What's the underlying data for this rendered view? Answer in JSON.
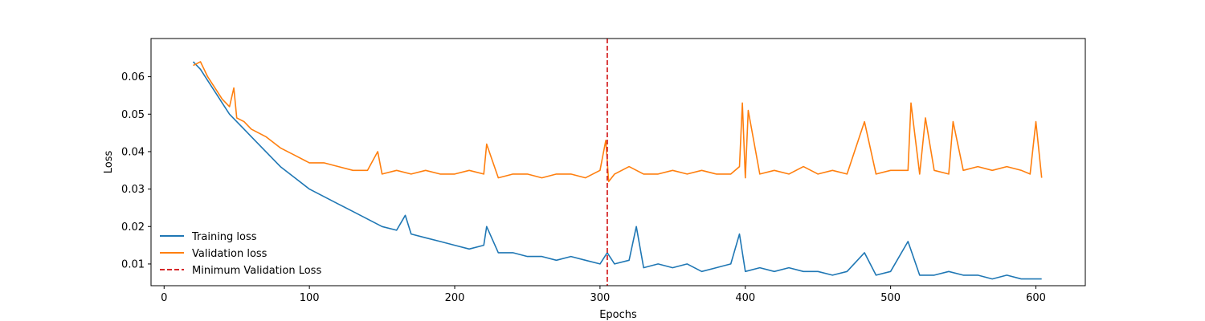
{
  "chart_data": {
    "type": "line",
    "xlabel": "Epochs",
    "ylabel": "Loss",
    "xlim": [
      -9,
      634
    ],
    "ylim": [
      0.0042,
      0.0702
    ],
    "x_ticks": [
      0,
      100,
      200,
      300,
      400,
      500,
      600
    ],
    "y_ticks": [
      0.01,
      0.02,
      0.03,
      0.04,
      0.05,
      0.06
    ],
    "grid": false,
    "legend_position": "lower-left",
    "series": [
      {
        "name": "Training loss",
        "color": "#1f77b4",
        "x": [
          20,
          25,
          30,
          35,
          40,
          45,
          50,
          55,
          60,
          70,
          80,
          90,
          100,
          110,
          120,
          130,
          140,
          150,
          160,
          166,
          170,
          180,
          190,
          200,
          210,
          220,
          222,
          230,
          240,
          250,
          260,
          270,
          280,
          290,
          300,
          305,
          310,
          320,
          325,
          330,
          340,
          350,
          360,
          370,
          380,
          390,
          396,
          400,
          410,
          420,
          430,
          440,
          450,
          460,
          470,
          482,
          490,
          500,
          512,
          520,
          530,
          540,
          550,
          560,
          570,
          580,
          590,
          600,
          604
        ],
        "y": [
          0.064,
          0.062,
          0.059,
          0.056,
          0.053,
          0.05,
          0.048,
          0.046,
          0.044,
          0.04,
          0.036,
          0.033,
          0.03,
          0.028,
          0.026,
          0.024,
          0.022,
          0.02,
          0.019,
          0.023,
          0.018,
          0.017,
          0.016,
          0.015,
          0.014,
          0.015,
          0.02,
          0.013,
          0.013,
          0.012,
          0.012,
          0.011,
          0.012,
          0.011,
          0.01,
          0.013,
          0.01,
          0.011,
          0.02,
          0.009,
          0.01,
          0.009,
          0.01,
          0.008,
          0.009,
          0.01,
          0.018,
          0.008,
          0.009,
          0.008,
          0.009,
          0.008,
          0.008,
          0.007,
          0.008,
          0.013,
          0.007,
          0.008,
          0.016,
          0.007,
          0.007,
          0.008,
          0.007,
          0.007,
          0.006,
          0.007,
          0.006,
          0.006,
          0.006
        ]
      },
      {
        "name": "Validation loss",
        "color": "#ff7f0e",
        "x": [
          20,
          25,
          30,
          35,
          40,
          45,
          48,
          50,
          55,
          60,
          70,
          80,
          90,
          100,
          110,
          120,
          130,
          140,
          147,
          150,
          160,
          170,
          180,
          190,
          200,
          210,
          220,
          222,
          230,
          240,
          250,
          260,
          270,
          280,
          290,
          300,
          304,
          306,
          310,
          320,
          330,
          340,
          350,
          360,
          370,
          380,
          390,
          396,
          398,
          400,
          402,
          410,
          420,
          430,
          440,
          450,
          460,
          470,
          482,
          490,
          500,
          512,
          514,
          520,
          524,
          530,
          540,
          543,
          550,
          560,
          570,
          580,
          590,
          596,
          600,
          604
        ],
        "y": [
          0.063,
          0.064,
          0.06,
          0.057,
          0.054,
          0.052,
          0.057,
          0.049,
          0.048,
          0.046,
          0.044,
          0.041,
          0.039,
          0.037,
          0.037,
          0.036,
          0.035,
          0.035,
          0.04,
          0.034,
          0.035,
          0.034,
          0.035,
          0.034,
          0.034,
          0.035,
          0.034,
          0.042,
          0.033,
          0.034,
          0.034,
          0.033,
          0.034,
          0.034,
          0.033,
          0.035,
          0.043,
          0.032,
          0.034,
          0.036,
          0.034,
          0.034,
          0.035,
          0.034,
          0.035,
          0.034,
          0.034,
          0.036,
          0.053,
          0.033,
          0.051,
          0.034,
          0.035,
          0.034,
          0.036,
          0.034,
          0.035,
          0.034,
          0.048,
          0.034,
          0.035,
          0.035,
          0.053,
          0.034,
          0.049,
          0.035,
          0.034,
          0.048,
          0.035,
          0.036,
          0.035,
          0.036,
          0.035,
          0.034,
          0.048,
          0.033
        ]
      }
    ],
    "reference_lines": [
      {
        "name": "Minimum Validation Loss",
        "orientation": "vertical",
        "x": 305,
        "color": "#d62728",
        "style": "dashed"
      }
    ]
  }
}
